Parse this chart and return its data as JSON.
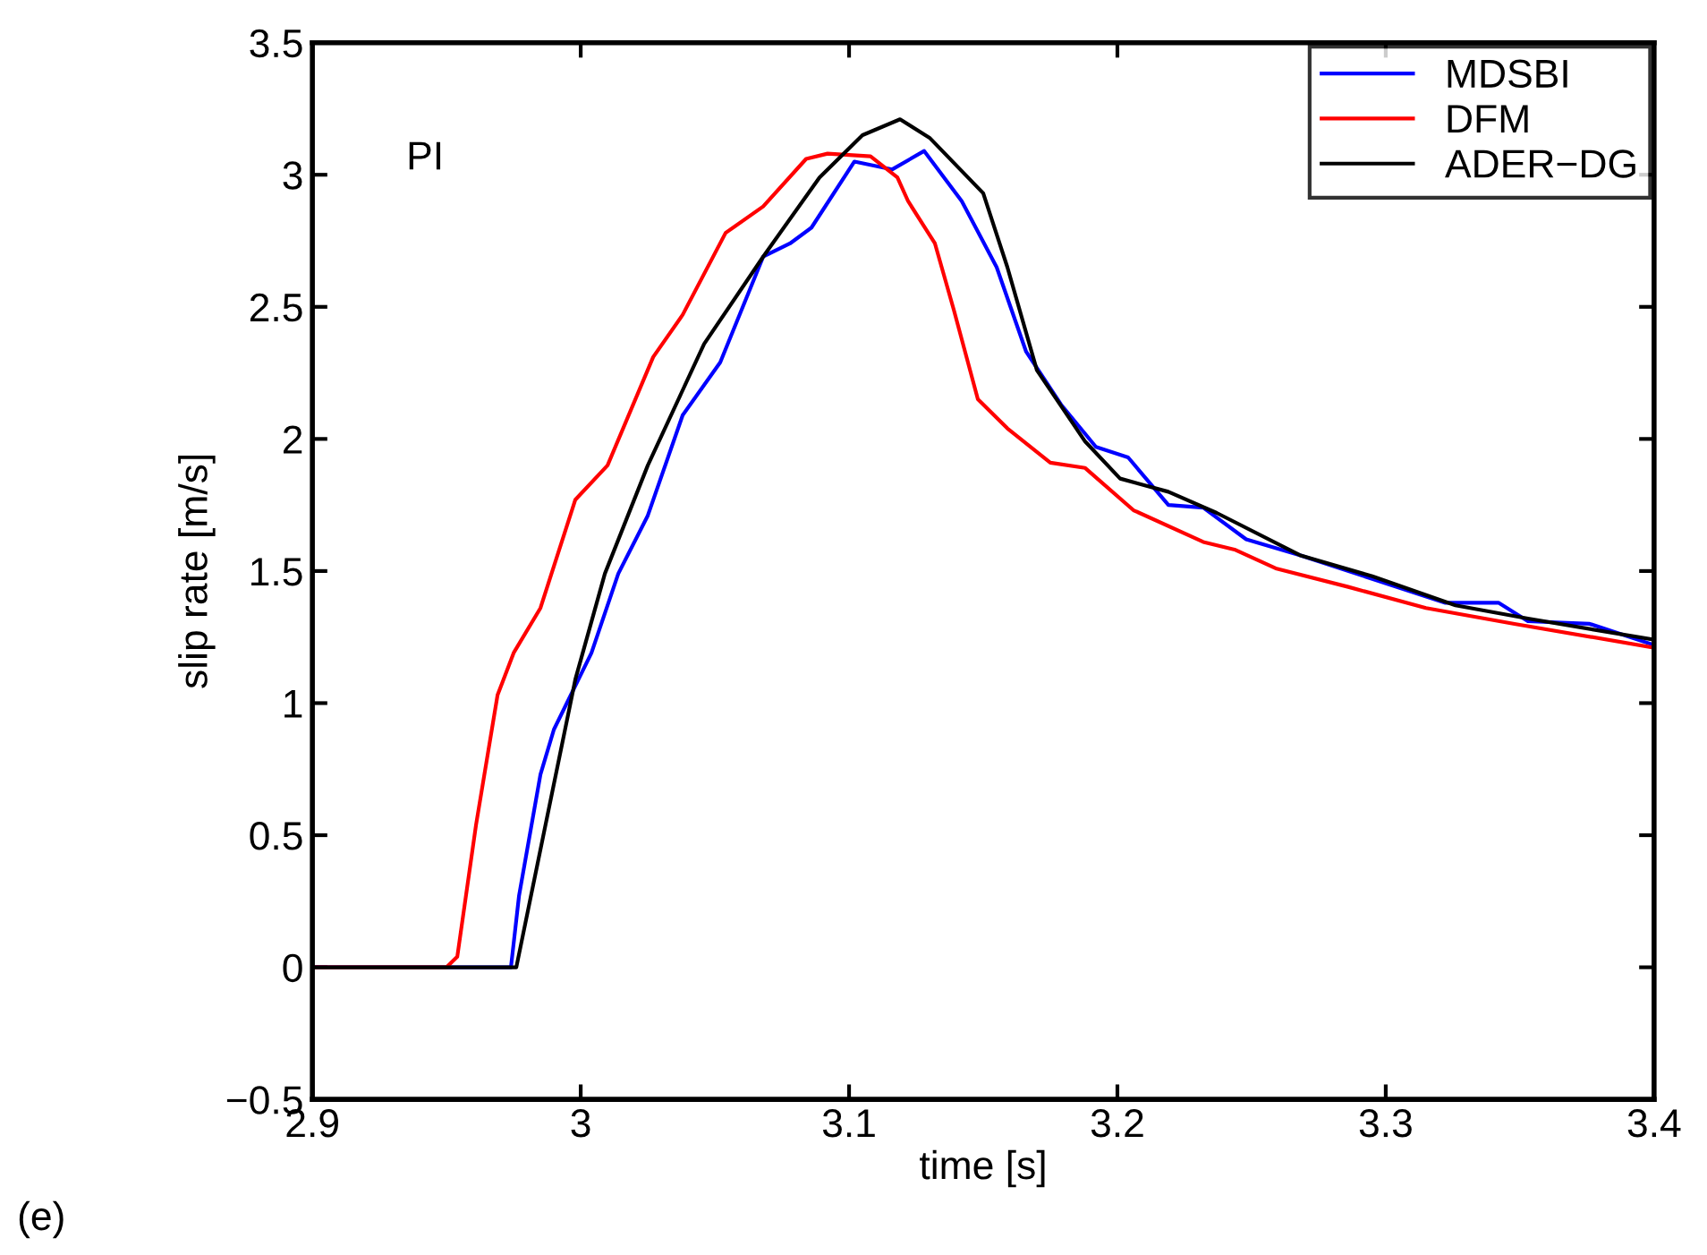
{
  "chart_data": {
    "type": "line",
    "xlabel": "time [s]",
    "ylabel": "slip rate [m/s]",
    "annotations": [
      "PI",
      "(e)"
    ],
    "xlim": [
      2.9,
      3.4
    ],
    "xticks": [
      2.9,
      3,
      3.1,
      3.2,
      3.3,
      3.4
    ],
    "ylim": [
      -0.5,
      3.5
    ],
    "yticks": [
      -0.5,
      0,
      0.5,
      1,
      1.5,
      2,
      2.5,
      3,
      3.5
    ],
    "grid": false,
    "legend": "top right",
    "marker": "none",
    "line_style": "solid",
    "series": [
      {
        "name": "MDSBI",
        "color": "#0000ff",
        "x": [
          2.9,
          2.974,
          2.977,
          2.985,
          2.99,
          3.004,
          3.014,
          3.025,
          3.038,
          3.052,
          3.068,
          3.078,
          3.086,
          3.102,
          3.116,
          3.128,
          3.142,
          3.155,
          3.166,
          3.179,
          3.192,
          3.204,
          3.219,
          3.232,
          3.248,
          3.268,
          3.295,
          3.322,
          3.342,
          3.353,
          3.376,
          3.4
        ],
        "values": [
          0,
          0,
          0.27,
          0.73,
          0.9,
          1.19,
          1.49,
          1.71,
          2.09,
          2.29,
          2.69,
          2.74,
          2.8,
          3.05,
          3.02,
          3.09,
          2.9,
          2.65,
          2.33,
          2.13,
          1.97,
          1.93,
          1.75,
          1.74,
          1.62,
          1.56,
          1.47,
          1.38,
          1.38,
          1.31,
          1.3,
          1.22
        ]
      },
      {
        "name": "DFM",
        "color": "#ff0000",
        "x": [
          2.9,
          2.95,
          2.954,
          2.961,
          2.969,
          2.975,
          2.985,
          2.998,
          3.01,
          3.027,
          3.038,
          3.054,
          3.068,
          3.084,
          3.092,
          3.108,
          3.118,
          3.122,
          3.132,
          3.139,
          3.148,
          3.159,
          3.175,
          3.188,
          3.206,
          3.232,
          3.244,
          3.259,
          3.286,
          3.315,
          3.348,
          3.4
        ],
        "values": [
          0,
          0,
          0.04,
          0.54,
          1.03,
          1.19,
          1.36,
          1.77,
          1.9,
          2.31,
          2.47,
          2.78,
          2.88,
          3.06,
          3.08,
          3.07,
          2.99,
          2.9,
          2.74,
          2.49,
          2.15,
          2.04,
          1.91,
          1.89,
          1.73,
          1.61,
          1.58,
          1.51,
          1.44,
          1.36,
          1.3,
          1.21
        ]
      },
      {
        "name": "ADER−DG",
        "color": "#000000",
        "x": [
          2.9,
          2.976,
          2.998,
          3.009,
          3.025,
          3.046,
          3.068,
          3.089,
          3.105,
          3.119,
          3.13,
          3.15,
          3.159,
          3.17,
          3.188,
          3.201,
          3.219,
          3.237,
          3.268,
          3.295,
          3.326,
          3.353,
          3.4
        ],
        "values": [
          0,
          0,
          1.09,
          1.49,
          1.9,
          2.36,
          2.69,
          2.99,
          3.15,
          3.21,
          3.14,
          2.93,
          2.65,
          2.26,
          1.99,
          1.85,
          1.8,
          1.72,
          1.56,
          1.48,
          1.37,
          1.32,
          1.24
        ]
      }
    ]
  }
}
